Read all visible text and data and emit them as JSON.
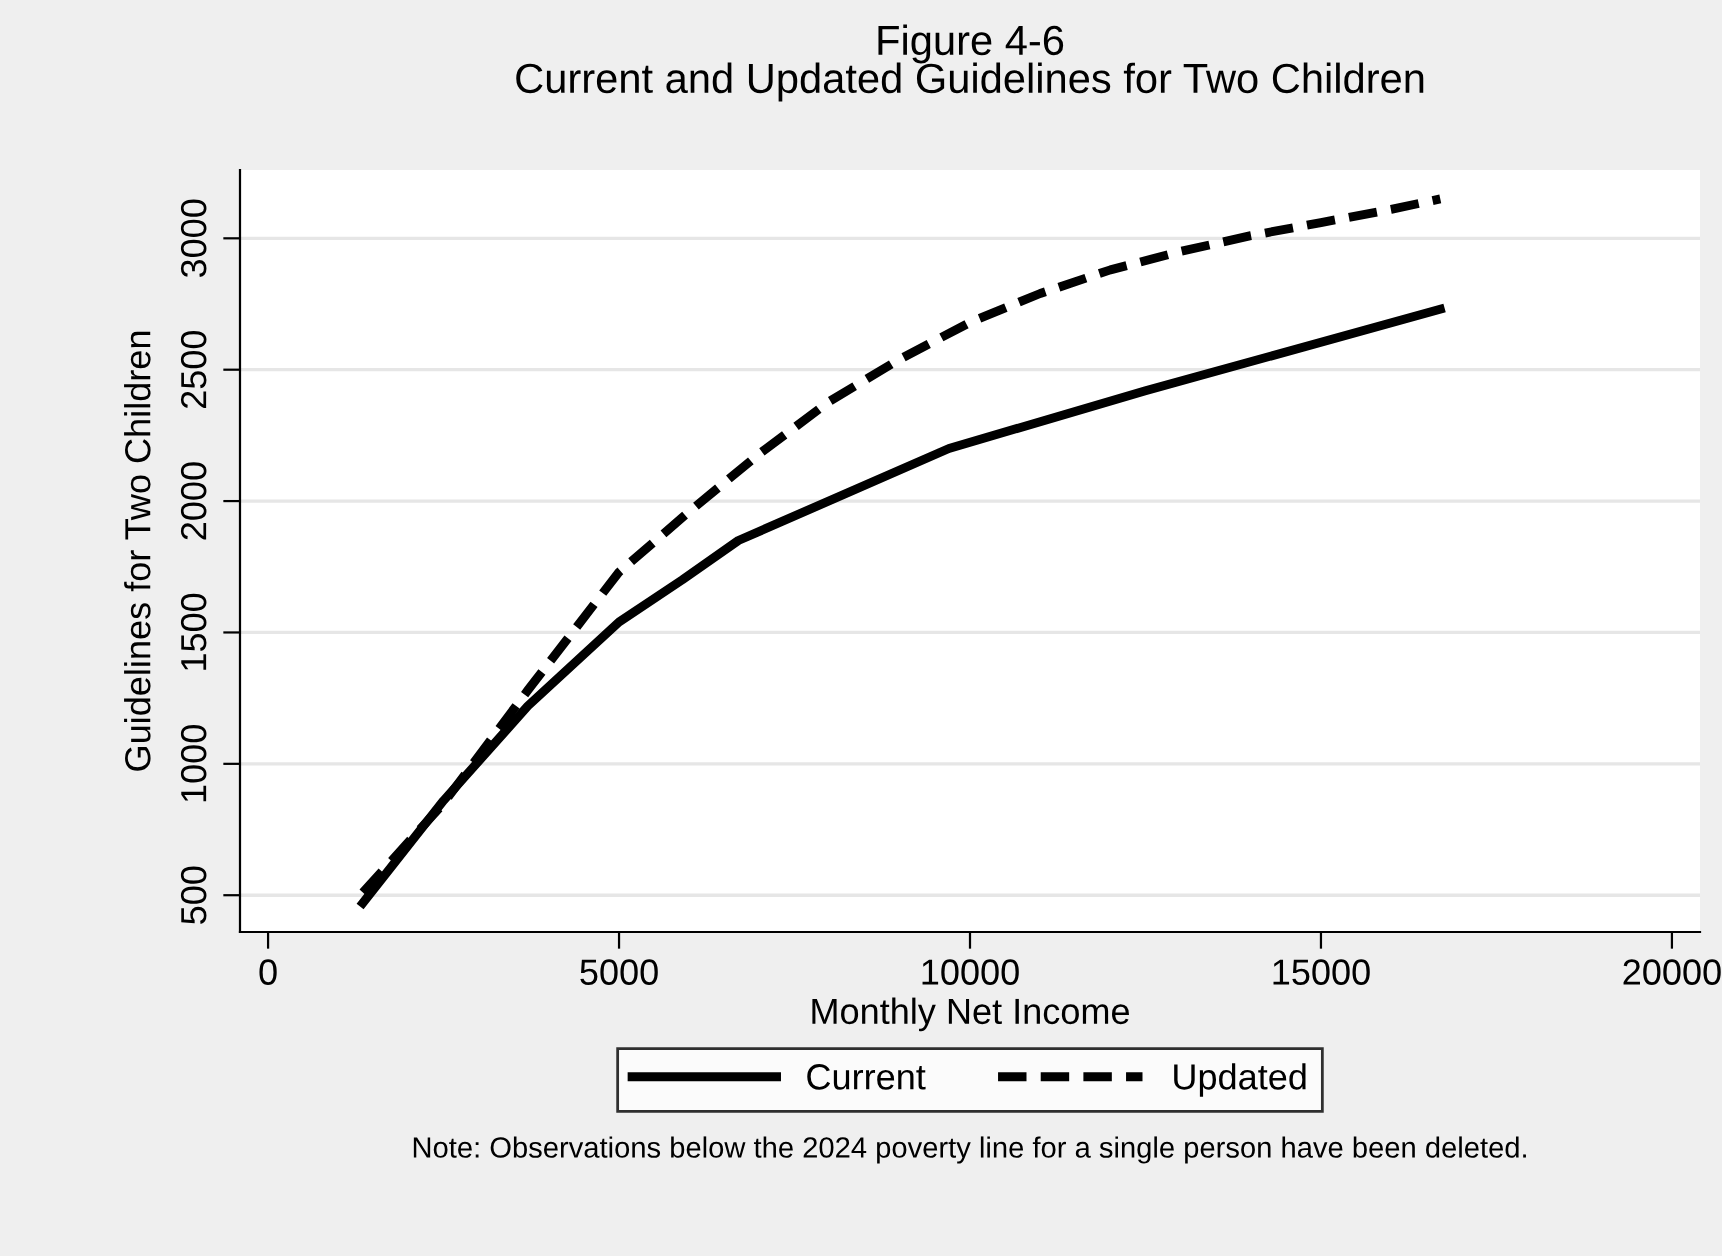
{
  "chart_data": {
    "type": "line",
    "title": "Figure 4-6",
    "subtitle": "Current and Updated Guidelines for Two Children",
    "xlabel": "Monthly Net Income",
    "ylabel": "Guidelines for Two Children",
    "annotations": [
      "Note: Observations below the 2024 poverty line for a single person have been deleted."
    ],
    "xlim": [
      -400,
      20400
    ],
    "ylim": [
      360,
      3260
    ],
    "xticks": [
      0,
      5000,
      10000,
      15000,
      20000
    ],
    "yticks": [
      500,
      1000,
      1500,
      2000,
      2500,
      3000
    ],
    "grid": "y",
    "legend": "bottom",
    "marker": "none",
    "series": [
      {
        "name": "Current",
        "color": "#000000",
        "line_style": "solid",
        "x": [
          1350,
          2500,
          3700,
          5000,
          5900,
          6700,
          9700,
          12500,
          16700
        ],
        "values": [
          470,
          860,
          1220,
          1540,
          1700,
          1850,
          2200,
          2420,
          2730
        ]
      },
      {
        "name": "Updated",
        "color": "#000000",
        "line_style": "dashed",
        "x": [
          1350,
          2500,
          3700,
          5000,
          6000,
          7000,
          8000,
          9000,
          10000,
          11000,
          12000,
          13000,
          14000,
          15000,
          16000,
          16700
        ],
        "values": [
          510,
          850,
          1280,
          1730,
          1960,
          2180,
          2380,
          2540,
          2680,
          2790,
          2880,
          2950,
          3010,
          3060,
          3110,
          3150
        ]
      }
    ]
  }
}
